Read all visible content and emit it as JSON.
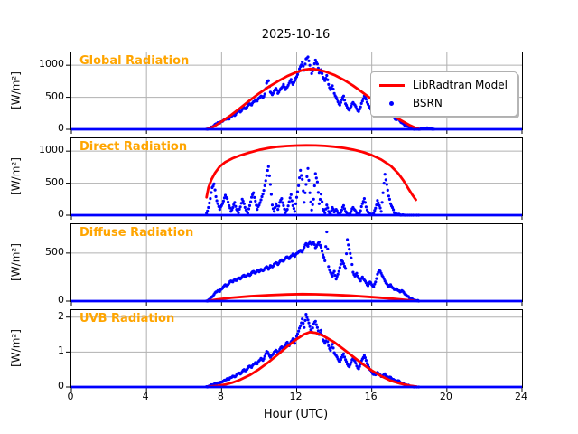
{
  "title": "2025-10-16",
  "xlabel": "Hour (UTC)",
  "colors": {
    "model": "#ff0000",
    "scatter": "#0000ff",
    "panel_label": "#ffa500",
    "grid": "#b0b0b0",
    "spine": "#000000",
    "background": "#ffffff",
    "legend_edge": "#b0b0b0"
  },
  "legend": {
    "entries": [
      {
        "label": "LibRadtran Model",
        "marker": "line",
        "color": "#ff0000"
      },
      {
        "label": "BSRN",
        "marker": "dot",
        "color": "#0000ff"
      }
    ]
  },
  "chart_data": {
    "type": "line+scatter",
    "panels": 4,
    "grid": true,
    "x": {
      "label": "Hour (UTC)",
      "range": [
        0,
        24
      ],
      "ticks": [
        0,
        4,
        8,
        12,
        16,
        20,
        24
      ]
    },
    "series_names": [
      "LibRadtran Model",
      "BSRN"
    ],
    "subplots": [
      {
        "name": "Global Radiation",
        "ylabel": "[W/m²]",
        "ylim": [
          0,
          1200
        ],
        "yticks": [
          0,
          500,
          1000
        ],
        "legend": true,
        "baseline": 0,
        "model": [
          [
            7.2,
            2
          ],
          [
            7.6,
            45
          ],
          [
            8,
            120
          ],
          [
            8.5,
            220
          ],
          [
            9,
            335
          ],
          [
            9.5,
            450
          ],
          [
            10,
            560
          ],
          [
            10.5,
            660
          ],
          [
            11,
            750
          ],
          [
            11.5,
            830
          ],
          [
            12,
            893
          ],
          [
            12.4,
            930
          ],
          [
            12.7,
            943
          ],
          [
            13,
            938
          ],
          [
            13.5,
            903
          ],
          [
            14,
            848
          ],
          [
            14.5,
            773
          ],
          [
            15,
            682
          ],
          [
            15.5,
            578
          ],
          [
            16,
            468
          ],
          [
            16.5,
            355
          ],
          [
            17,
            246
          ],
          [
            17.5,
            148
          ],
          [
            18,
            65
          ],
          [
            18.3,
            25
          ],
          [
            18.55,
            2
          ]
        ],
        "scatter": {
          "x0": 7.2,
          "dx": 0.1,
          "y": [
            2,
            8,
            18,
            35,
            60,
            85,
            105,
            95,
            120,
            140,
            155,
            175,
            160,
            195,
            230,
            215,
            260,
            290,
            270,
            310,
            340,
            320,
            370,
            400,
            380,
            430,
            460,
            440,
            490,
            520,
            495,
            550,
            720,
            760,
            580,
            540,
            600,
            640,
            560,
            610,
            650,
            700,
            620,
            660,
            720,
            780,
            700,
            760,
            820,
            900,
            980,
            1050,
            920,
            1100,
            1130,
            1000,
            870,
            950,
            1080,
            1020,
            880,
            930,
            810,
            760,
            840,
            700,
            620,
            680,
            560,
            500,
            430,
            380,
            460,
            520,
            400,
            340,
            300,
            360,
            420,
            380,
            320,
            280,
            350,
            440,
            520,
            470,
            390,
            330,
            280,
            240,
            300,
            350,
            280,
            230,
            260,
            290,
            250,
            210,
            230,
            200,
            180,
            150,
            160,
            130,
            100,
            80,
            60,
            45,
            30,
            18,
            10,
            5,
            2,
            0,
            8,
            15,
            20,
            12,
            18,
            10,
            5,
            2
          ]
        }
      },
      {
        "name": "Direct Radiation",
        "ylabel": "[W/m²]",
        "ylim": [
          0,
          1200
        ],
        "yticks": [
          0,
          500,
          1000
        ],
        "legend": false,
        "baseline": 0,
        "model": [
          [
            7.2,
            280
          ],
          [
            7.3,
            430
          ],
          [
            7.45,
            550
          ],
          [
            7.65,
            660
          ],
          [
            7.9,
            760
          ],
          [
            8.2,
            830
          ],
          [
            8.6,
            890
          ],
          [
            9,
            935
          ],
          [
            9.5,
            980
          ],
          [
            10,
            1020
          ],
          [
            10.5,
            1048
          ],
          [
            11,
            1068
          ],
          [
            11.5,
            1080
          ],
          [
            12,
            1087
          ],
          [
            12.5,
            1090
          ],
          [
            13,
            1088
          ],
          [
            13.5,
            1081
          ],
          [
            14,
            1069
          ],
          [
            14.5,
            1050
          ],
          [
            15,
            1024
          ],
          [
            15.5,
            988
          ],
          [
            16,
            938
          ],
          [
            16.5,
            868
          ],
          [
            17,
            772
          ],
          [
            17.4,
            655
          ],
          [
            17.7,
            535
          ],
          [
            17.95,
            415
          ],
          [
            18.15,
            320
          ],
          [
            18.35,
            240
          ]
        ],
        "scatter": {
          "x0": 7.2,
          "dx": 0.1,
          "y": [
            30,
            120,
            260,
            430,
            490,
            290,
            180,
            90,
            150,
            220,
            310,
            260,
            150,
            60,
            120,
            200,
            90,
            40,
            130,
            250,
            180,
            80,
            30,
            150,
            280,
            350,
            220,
            90,
            160,
            240,
            330,
            460,
            620,
            760,
            480,
            160,
            60,
            180,
            90,
            200,
            260,
            150,
            40,
            90,
            210,
            320,
            150,
            60,
            280,
            460,
            700,
            560,
            200,
            480,
            730,
            350,
            80,
            250,
            650,
            520,
            180,
            330,
            90,
            40,
            160,
            60,
            20,
            120,
            50,
            90,
            40,
            10,
            80,
            150,
            60,
            20,
            5,
            60,
            120,
            80,
            30,
            10,
            70,
            180,
            260,
            130,
            50,
            15,
            5,
            30,
            110,
            230,
            150,
            60,
            350,
            640,
            480,
            300,
            180,
            120,
            40,
            20,
            10,
            5,
            2,
            1,
            0,
            0,
            0,
            0,
            0,
            0,
            0,
            0
          ]
        }
      },
      {
        "name": "Diffuse Radiation",
        "ylabel": "[W/m²]",
        "ylim": [
          0,
          800
        ],
        "yticks": [
          0,
          500
        ],
        "legend": false,
        "baseline": 0,
        "model": [
          [
            7.3,
            4
          ],
          [
            7.8,
            18
          ],
          [
            8.5,
            34
          ],
          [
            9.5,
            50
          ],
          [
            10.5,
            61
          ],
          [
            11.5,
            69
          ],
          [
            12.3,
            72
          ],
          [
            13,
            71
          ],
          [
            13.8,
            66
          ],
          [
            14.8,
            57
          ],
          [
            15.8,
            44
          ],
          [
            16.8,
            30
          ],
          [
            17.5,
            17
          ],
          [
            18,
            8
          ],
          [
            18.3,
            3
          ]
        ],
        "scatter": {
          "x0": 7.2,
          "dx": 0.1,
          "y": [
            2,
            10,
            25,
            45,
            70,
            95,
            110,
            100,
            125,
            150,
            170,
            160,
            185,
            210,
            200,
            225,
            215,
            240,
            230,
            255,
            270,
            250,
            280,
            265,
            295,
            310,
            290,
            320,
            305,
            330,
            315,
            340,
            360,
            330,
            370,
            355,
            385,
            400,
            380,
            410,
            430,
            415,
            445,
            460,
            440,
            470,
            490,
            465,
            495,
            510,
            530,
            510,
            560,
            600,
            570,
            620,
            590,
            610,
            555,
            585,
            615,
            560,
            480,
            420,
            720,
            360,
            300,
            260,
            310,
            230,
            280,
            350,
            420,
            390,
            340,
            640,
            540,
            450,
            300,
            260,
            290,
            240,
            210,
            250,
            220,
            190,
            160,
            200,
            170,
            150,
            200,
            280,
            320,
            290,
            250,
            210,
            180,
            150,
            170,
            140,
            120,
            130,
            110,
            95,
            110,
            90,
            70,
            50,
            35,
            25,
            15,
            8,
            3,
            0
          ]
        }
      },
      {
        "name": "UVB Radiation",
        "ylabel": "[W/m²]",
        "ylim": [
          0,
          2.2
        ],
        "yticks": [
          0,
          1,
          2
        ],
        "legend": false,
        "baseline": 0,
        "model": [
          [
            7.3,
            0.01
          ],
          [
            7.8,
            0.03
          ],
          [
            8.2,
            0.07
          ],
          [
            8.6,
            0.13
          ],
          [
            9,
            0.21
          ],
          [
            9.5,
            0.34
          ],
          [
            10,
            0.51
          ],
          [
            10.5,
            0.71
          ],
          [
            11,
            0.93
          ],
          [
            11.5,
            1.16
          ],
          [
            12,
            1.37
          ],
          [
            12.4,
            1.51
          ],
          [
            12.7,
            1.57
          ],
          [
            13,
            1.55
          ],
          [
            13.4,
            1.47
          ],
          [
            14,
            1.28
          ],
          [
            14.5,
            1.08
          ],
          [
            15,
            0.87
          ],
          [
            15.5,
            0.66
          ],
          [
            16,
            0.47
          ],
          [
            16.5,
            0.31
          ],
          [
            17,
            0.18
          ],
          [
            17.5,
            0.1
          ],
          [
            18,
            0.04
          ],
          [
            18.4,
            0.01
          ]
        ],
        "scatter": {
          "x0": 7.2,
          "dx": 0.1,
          "y": [
            0.01,
            0.02,
            0.04,
            0.06,
            0.08,
            0.1,
            0.12,
            0.11,
            0.14,
            0.17,
            0.2,
            0.24,
            0.22,
            0.27,
            0.31,
            0.29,
            0.35,
            0.4,
            0.37,
            0.44,
            0.5,
            0.46,
            0.54,
            0.6,
            0.56,
            0.65,
            0.7,
            0.66,
            0.75,
            0.82,
            0.76,
            0.88,
            1.02,
            0.95,
            0.85,
            0.92,
            1.0,
            1.05,
            0.96,
            1.08,
            1.15,
            1.1,
            1.2,
            1.28,
            1.18,
            1.3,
            1.38,
            1.25,
            1.45,
            1.6,
            1.75,
            1.95,
            1.7,
            2.08,
            1.92,
            1.73,
            1.58,
            1.8,
            1.88,
            1.7,
            1.5,
            1.62,
            1.35,
            1.25,
            1.4,
            1.18,
            1.05,
            1.22,
            0.98,
            0.9,
            0.8,
            0.72,
            0.85,
            0.95,
            0.78,
            0.65,
            0.58,
            0.7,
            0.82,
            0.74,
            0.6,
            0.52,
            0.66,
            0.8,
            0.9,
            0.76,
            0.62,
            0.5,
            0.42,
            0.36,
            0.35,
            0.42,
            0.36,
            0.3,
            0.33,
            0.38,
            0.3,
            0.26,
            0.28,
            0.22,
            0.2,
            0.16,
            0.18,
            0.14,
            0.11,
            0.09,
            0.07,
            0.05,
            0.03,
            0.02,
            0.01,
            0.01,
            0.0,
            0.0
          ]
        }
      }
    ]
  }
}
